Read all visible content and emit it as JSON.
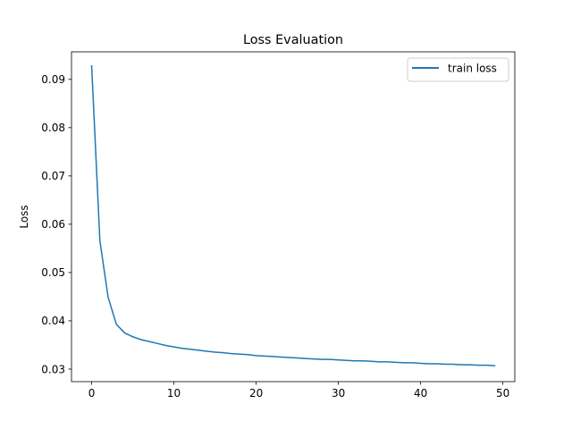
{
  "chart_data": {
    "type": "line",
    "title": "Loss Evaluation",
    "xlabel": "",
    "ylabel": "Loss",
    "xlim": [
      -2.45,
      51.45
    ],
    "ylim": [
      0.0274,
      0.0957
    ],
    "xticks": [
      0,
      10,
      20,
      30,
      40,
      50
    ],
    "yticks": [
      0.03,
      0.04,
      0.05,
      0.06,
      0.07,
      0.08,
      0.09
    ],
    "xtick_labels": [
      "0",
      "10",
      "20",
      "30",
      "40",
      "50"
    ],
    "ytick_labels": [
      "0.03",
      "0.04",
      "0.05",
      "0.06",
      "0.07",
      "0.08",
      "0.09"
    ],
    "grid": false,
    "legend_position": "top-right",
    "series": [
      {
        "name": "train loss",
        "color": "#1f77b4",
        "x": [
          0,
          1,
          2,
          3,
          4,
          5,
          6,
          7,
          8,
          9,
          10,
          11,
          12,
          13,
          14,
          15,
          16,
          17,
          18,
          19,
          20,
          21,
          22,
          23,
          24,
          25,
          26,
          27,
          28,
          29,
          30,
          31,
          32,
          33,
          34,
          35,
          36,
          37,
          38,
          39,
          40,
          41,
          42,
          43,
          44,
          45,
          46,
          47,
          48,
          49
        ],
        "y": [
          0.0928,
          0.0566,
          0.0449,
          0.0393,
          0.0375,
          0.0367,
          0.0361,
          0.0357,
          0.0353,
          0.0349,
          0.0346,
          0.0343,
          0.0341,
          0.0339,
          0.0337,
          0.0335,
          0.0334,
          0.0332,
          0.0331,
          0.033,
          0.0328,
          0.0327,
          0.0326,
          0.0325,
          0.0324,
          0.0323,
          0.0322,
          0.0321,
          0.032,
          0.032,
          0.0319,
          0.0318,
          0.0317,
          0.0317,
          0.0316,
          0.0315,
          0.0315,
          0.0314,
          0.0313,
          0.0313,
          0.0312,
          0.0311,
          0.0311,
          0.031,
          0.031,
          0.0309,
          0.0309,
          0.0308,
          0.0308,
          0.0307
        ]
      }
    ]
  }
}
